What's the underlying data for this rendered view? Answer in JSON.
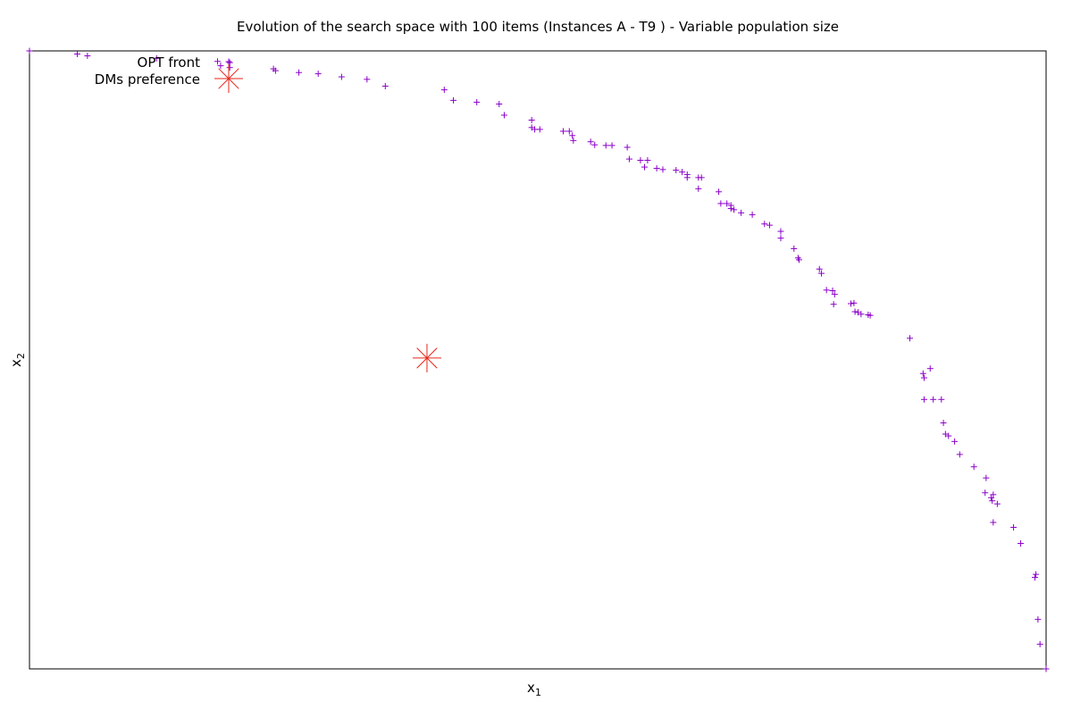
{
  "chart_data": {
    "type": "scatter",
    "title": "Evolution of the search space with 100 items (Instances A - T9 ) - Variable population size",
    "xlabel": "x",
    "xlabel_sub": "1",
    "ylabel": "x",
    "ylabel_sub": "2",
    "xlim": [
      0,
      1
    ],
    "ylim": [
      0,
      1
    ],
    "ticks_shown": false,
    "grid": false,
    "legend": {
      "position": "top-left",
      "entries": [
        {
          "label": "OPT front",
          "marker": "plus",
          "color": "#8B00C8"
        },
        {
          "label": "DMs preference",
          "marker": "star",
          "color": "#E8261A"
        }
      ]
    },
    "series": [
      {
        "name": "OPT front",
        "marker": "plus",
        "color": "#8B00C8",
        "points": [
          [
            0.0,
            1.0
          ],
          [
            0.047,
            0.995
          ],
          [
            0.057,
            0.992
          ],
          [
            0.125,
            0.988
          ],
          [
            0.185,
            0.983
          ],
          [
            0.188,
            0.976
          ],
          [
            0.197,
            0.981
          ],
          [
            0.197,
            0.973
          ],
          [
            0.24,
            0.971
          ],
          [
            0.242,
            0.968
          ],
          [
            0.265,
            0.965
          ],
          [
            0.284,
            0.963
          ],
          [
            0.307,
            0.958
          ],
          [
            0.332,
            0.954
          ],
          [
            0.35,
            0.943
          ],
          [
            0.408,
            0.937
          ],
          [
            0.417,
            0.92
          ],
          [
            0.44,
            0.917
          ],
          [
            0.462,
            0.914
          ],
          [
            0.467,
            0.896
          ],
          [
            0.494,
            0.888
          ],
          [
            0.494,
            0.876
          ],
          [
            0.497,
            0.873
          ],
          [
            0.502,
            0.873
          ],
          [
            0.525,
            0.87
          ],
          [
            0.531,
            0.87
          ],
          [
            0.534,
            0.863
          ],
          [
            0.535,
            0.855
          ],
          [
            0.552,
            0.853
          ],
          [
            0.556,
            0.848
          ],
          [
            0.567,
            0.847
          ],
          [
            0.573,
            0.847
          ],
          [
            0.588,
            0.844
          ],
          [
            0.59,
            0.825
          ],
          [
            0.601,
            0.823
          ],
          [
            0.608,
            0.823
          ],
          [
            0.605,
            0.812
          ],
          [
            0.617,
            0.81
          ],
          [
            0.623,
            0.808
          ],
          [
            0.636,
            0.807
          ],
          [
            0.642,
            0.804
          ],
          [
            0.647,
            0.8
          ],
          [
            0.647,
            0.795
          ],
          [
            0.658,
            0.795
          ],
          [
            0.661,
            0.795
          ],
          [
            0.658,
            0.777
          ],
          [
            0.678,
            0.772
          ],
          [
            0.68,
            0.753
          ],
          [
            0.686,
            0.753
          ],
          [
            0.69,
            0.75
          ],
          [
            0.69,
            0.745
          ],
          [
            0.693,
            0.743
          ],
          [
            0.7,
            0.738
          ],
          [
            0.711,
            0.735
          ],
          [
            0.723,
            0.72
          ],
          [
            0.728,
            0.718
          ],
          [
            0.739,
            0.708
          ],
          [
            0.739,
            0.697
          ],
          [
            0.752,
            0.68
          ],
          [
            0.756,
            0.665
          ],
          [
            0.757,
            0.662
          ],
          [
            0.777,
            0.647
          ],
          [
            0.779,
            0.64
          ],
          [
            0.784,
            0.613
          ],
          [
            0.79,
            0.612
          ],
          [
            0.792,
            0.606
          ],
          [
            0.791,
            0.59
          ],
          [
            0.812,
            0.578
          ],
          [
            0.811,
            0.592
          ],
          [
            0.825,
            0.573
          ],
          [
            0.827,
            0.572
          ],
          [
            0.815,
            0.577
          ],
          [
            0.818,
            0.574
          ],
          [
            0.808,
            0.591
          ],
          [
            0.866,
            0.535
          ],
          [
            0.886,
            0.486
          ],
          [
            0.88,
            0.471
          ],
          [
            0.879,
            0.478
          ],
          [
            0.88,
            0.436
          ],
          [
            0.889,
            0.436
          ],
          [
            0.897,
            0.436
          ],
          [
            0.899,
            0.398
          ],
          [
            0.901,
            0.38
          ],
          [
            0.904,
            0.377
          ],
          [
            0.91,
            0.368
          ],
          [
            0.915,
            0.347
          ],
          [
            0.929,
            0.327
          ],
          [
            0.941,
            0.309
          ],
          [
            0.948,
            0.282
          ],
          [
            0.94,
            0.285
          ],
          [
            0.946,
            0.277
          ],
          [
            0.947,
            0.272
          ],
          [
            0.952,
            0.267
          ],
          [
            0.948,
            0.237
          ],
          [
            0.968,
            0.229
          ],
          [
            0.975,
            0.203
          ],
          [
            0.99,
            0.153
          ],
          [
            0.989,
            0.148
          ],
          [
            0.992,
            0.08
          ],
          [
            0.994,
            0.04
          ],
          [
            1.0,
            0.0
          ]
        ]
      },
      {
        "name": "DMs preference",
        "marker": "star",
        "color": "#E8261A",
        "points": [
          [
            0.391,
            0.503
          ]
        ]
      }
    ]
  }
}
